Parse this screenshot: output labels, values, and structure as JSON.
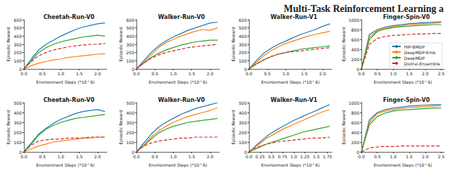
{
  "header": {
    "title": "Multi-Task Reinforcement Learning a"
  },
  "chart_data": [
    {
      "type": "line",
      "title": "Cheetah-Run-V0",
      "xlabel": "Environment Steps (*10^6)",
      "ylabel": "Episodic Reward",
      "x": [
        0,
        0.2,
        0.4,
        0.6,
        0.8,
        1.0,
        1.2,
        1.4,
        1.6,
        1.8,
        2.0,
        2.2
      ],
      "xlim": [
        0,
        2.25
      ],
      "xticks": [
        {
          "value": 0,
          "label": "0.0"
        },
        0.5,
        {
          "value": 1,
          "label": "1.0"
        },
        1.5,
        {
          "value": 2,
          "label": "2.0"
        }
      ],
      "ylim": [
        0,
        600
      ],
      "yticks": [
        0,
        100,
        200,
        300,
        400,
        500,
        600
      ],
      "grid": false,
      "series": [
        {
          "name": "HIP-BMDP",
          "color": "#1f77b4",
          "values": [
            0,
            120,
            230,
            300,
            350,
            400,
            440,
            480,
            510,
            530,
            550,
            560
          ]
        },
        {
          "name": "DeepMDP-Emb",
          "color": "#ff7f0e",
          "values": [
            0,
            40,
            70,
            90,
            110,
            120,
            140,
            150,
            160,
            170,
            180,
            185
          ]
        },
        {
          "name": "DeepMDP",
          "color": "#2ca02c",
          "values": [
            0,
            100,
            200,
            260,
            300,
            330,
            350,
            370,
            390,
            400,
            410,
            400
          ]
        },
        {
          "name": "Distral-Ensemble",
          "color": "#d62728",
          "line_style": "dashed",
          "values": [
            0,
            90,
            160,
            200,
            230,
            250,
            270,
            280,
            290,
            300,
            300,
            310
          ]
        }
      ]
    },
    {
      "type": "line",
      "title": "Walker-Run-V0",
      "xlabel": "Environment Steps (*10^6)",
      "ylabel": "Episodic Reward",
      "x": [
        0,
        0.2,
        0.4,
        0.6,
        0.8,
        1.0,
        1.2,
        1.4,
        1.6,
        1.8,
        2.0,
        2.2
      ],
      "xlim": [
        0,
        2.25
      ],
      "xticks": [
        {
          "value": 0,
          "label": "0.0"
        },
        0.5,
        {
          "value": 1,
          "label": "1.0"
        },
        1.5,
        {
          "value": 2,
          "label": "2.0"
        }
      ],
      "ylim": [
        0,
        600
      ],
      "yticks": [
        0,
        100,
        200,
        300,
        400,
        500,
        600
      ],
      "grid": false,
      "series": [
        {
          "name": "HIP-BMDP",
          "color": "#1f77b4",
          "values": [
            0,
            100,
            200,
            280,
            340,
            390,
            430,
            470,
            500,
            530,
            560,
            570
          ]
        },
        {
          "name": "DeepMDP-Emb",
          "color": "#ff7f0e",
          "values": [
            0,
            80,
            170,
            260,
            320,
            360,
            400,
            430,
            460,
            480,
            470,
            500
          ]
        },
        {
          "name": "DeepMDP",
          "color": "#2ca02c",
          "values": [
            0,
            70,
            140,
            190,
            230,
            260,
            290,
            310,
            330,
            340,
            350,
            350
          ]
        },
        {
          "name": "Distral-Ensemble",
          "color": "#d62728",
          "line_style": "dashed",
          "values": [
            0,
            70,
            130,
            170,
            200,
            220,
            240,
            260,
            270,
            280,
            290,
            300
          ]
        }
      ]
    },
    {
      "type": "line",
      "title": "Walker-Run-V1",
      "xlabel": "Environment Steps (*10^6)",
      "ylabel": "Episodic Reward",
      "x": [
        0,
        0.2,
        0.4,
        0.6,
        0.8,
        1.0,
        1.2,
        1.4,
        1.6,
        1.8,
        2.0,
        2.2
      ],
      "xlim": [
        0,
        2.25
      ],
      "xticks": [
        {
          "value": 0,
          "label": "0.0"
        },
        0.5,
        {
          "value": 1,
          "label": "1.0"
        },
        1.5,
        {
          "value": 2,
          "label": "2.0"
        }
      ],
      "ylim": [
        0,
        600
      ],
      "yticks": [
        0,
        100,
        200,
        300,
        400,
        500,
        600
      ],
      "grid": false,
      "series": [
        {
          "name": "HIP-BMDP",
          "color": "#1f77b4",
          "values": [
            0,
            100,
            190,
            250,
            300,
            340,
            380,
            420,
            450,
            480,
            520,
            550
          ]
        },
        {
          "name": "DeepMDP-Emb",
          "color": "#ff7f0e",
          "values": [
            0,
            80,
            160,
            220,
            270,
            310,
            340,
            370,
            400,
            420,
            440,
            460
          ]
        },
        {
          "name": "DeepMDP",
          "color": "#2ca02c",
          "values": [
            0,
            60,
            110,
            150,
            180,
            200,
            220,
            240,
            250,
            260,
            270,
            280
          ]
        },
        {
          "name": "Distral-Ensemble",
          "color": "#d62728",
          "line_style": "dashed",
          "values": [
            0,
            60,
            110,
            150,
            180,
            200,
            210,
            220,
            230,
            240,
            250,
            260
          ]
        }
      ]
    },
    {
      "type": "line",
      "title": "Finger-Spin-V0",
      "xlabel": "Environment Steps (*10^6)",
      "ylabel": "Episodic Reward",
      "x": [
        0,
        0.25,
        0.5,
        0.75,
        1.0,
        1.25,
        1.5,
        1.75,
        2.0,
        2.25,
        2.5
      ],
      "xlim": [
        0,
        2.6
      ],
      "xticks": [
        {
          "value": 0,
          "label": "0.0"
        },
        0.5,
        {
          "value": 1,
          "label": "1.0"
        },
        1.5,
        {
          "value": 2,
          "label": "2.0"
        },
        2.5
      ],
      "ylim": [
        0,
        1000
      ],
      "yticks": [
        0,
        200,
        400,
        600,
        800,
        1000
      ],
      "grid": false,
      "legend": "lower right",
      "series": [
        {
          "name": "HIP-BMDP",
          "color": "#1f77b4",
          "values": [
            0,
            700,
            800,
            850,
            880,
            900,
            920,
            930,
            940,
            950,
            960
          ]
        },
        {
          "name": "DeepMDP-Emb",
          "color": "#ff7f0e",
          "values": [
            0,
            650,
            780,
            830,
            860,
            880,
            900,
            910,
            920,
            930,
            940
          ]
        },
        {
          "name": "DeepMDP",
          "color": "#2ca02c",
          "values": [
            0,
            600,
            760,
            810,
            840,
            860,
            870,
            880,
            890,
            900,
            900
          ]
        },
        {
          "name": "Distral-Ensemble",
          "color": "#d62728",
          "line_style": "dashed",
          "values": [
            0,
            500,
            620,
            660,
            680,
            690,
            700,
            710,
            710,
            720,
            720
          ]
        }
      ]
    },
    {
      "type": "line",
      "title": "Cheetah-Run-V0",
      "xlabel": "Environment Steps (*10^6)",
      "ylabel": "Episodic Reward",
      "x": [
        0,
        0.2,
        0.4,
        0.6,
        0.8,
        1.0,
        1.2,
        1.4,
        1.6,
        1.8,
        2.0,
        2.2
      ],
      "xlim": [
        0,
        2.25
      ],
      "xticks": [
        {
          "value": 0,
          "label": "0.0"
        },
        0.5,
        {
          "value": 1,
          "label": "1.0"
        },
        1.5,
        {
          "value": 2,
          "label": "2.0"
        }
      ],
      "ylim": [
        0,
        500
      ],
      "yticks": [
        0,
        100,
        200,
        300,
        400,
        500
      ],
      "grid": false,
      "series": [
        {
          "name": "HIP-BMDP",
          "color": "#1f77b4",
          "values": [
            0,
            90,
            180,
            240,
            290,
            330,
            360,
            390,
            410,
            420,
            430,
            410
          ]
        },
        {
          "name": "DeepMDP-Emb",
          "color": "#ff7f0e",
          "values": [
            0,
            30,
            60,
            80,
            100,
            110,
            120,
            130,
            140,
            140,
            150,
            150
          ]
        },
        {
          "name": "DeepMDP",
          "color": "#2ca02c",
          "values": [
            0,
            80,
            170,
            230,
            270,
            300,
            320,
            340,
            350,
            360,
            370,
            380
          ]
        },
        {
          "name": "Distral-Ensemble",
          "color": "#d62728",
          "line_style": "dashed",
          "values": [
            0,
            70,
            110,
            120,
            130,
            130,
            140,
            140,
            140,
            150,
            150,
            150
          ]
        }
      ]
    },
    {
      "type": "line",
      "title": "Walker-Run-V0",
      "xlabel": "Environment Steps (*10^6)",
      "ylabel": "Episodic Reward",
      "x": [
        0,
        0.2,
        0.4,
        0.6,
        0.8,
        1.0,
        1.2,
        1.4,
        1.6,
        1.8,
        2.0,
        2.2
      ],
      "xlim": [
        0,
        2.25
      ],
      "xticks": [
        {
          "value": 0,
          "label": "0.0"
        },
        0.5,
        {
          "value": 1,
          "label": "1.0"
        },
        1.5,
        {
          "value": 2,
          "label": "2.0"
        }
      ],
      "ylim": [
        0,
        500
      ],
      "yticks": [
        0,
        100,
        200,
        300,
        400,
        500
      ],
      "grid": false,
      "series": [
        {
          "name": "HIP-BMDP",
          "color": "#1f77b4",
          "values": [
            0,
            90,
            180,
            250,
            300,
            340,
            380,
            410,
            440,
            460,
            480,
            500
          ]
        },
        {
          "name": "DeepMDP-Emb",
          "color": "#ff7f0e",
          "values": [
            0,
            70,
            150,
            210,
            260,
            300,
            330,
            360,
            380,
            400,
            420,
            450
          ]
        },
        {
          "name": "DeepMDP",
          "color": "#2ca02c",
          "values": [
            0,
            60,
            130,
            190,
            230,
            260,
            280,
            300,
            310,
            320,
            330,
            340
          ]
        },
        {
          "name": "Distral-Ensemble",
          "color": "#d62728",
          "line_style": "dashed",
          "values": [
            0,
            60,
            90,
            110,
            120,
            130,
            140,
            140,
            150,
            150,
            150,
            150
          ]
        }
      ]
    },
    {
      "type": "line",
      "title": "Walker-Run-V1",
      "xlabel": "Environment Steps (*10^6)",
      "ylabel": "Episodic Reward",
      "x": [
        0,
        0.2,
        0.4,
        0.6,
        0.8,
        1.0,
        1.2,
        1.4,
        1.6,
        1.8
      ],
      "xlim": [
        0,
        1.85
      ],
      "xticks": [
        {
          "value": 0,
          "label": "0.0"
        },
        0.25,
        0.5,
        0.75,
        {
          "value": 1,
          "label": "1.0"
        },
        1.25,
        1.5,
        1.75
      ],
      "ylim": [
        0,
        500
      ],
      "yticks": [
        0,
        100,
        200,
        300,
        400,
        500
      ],
      "grid": false,
      "series": [
        {
          "name": "HIP-BMDP",
          "color": "#1f77b4",
          "values": [
            0,
            80,
            160,
            220,
            270,
            320,
            360,
            400,
            440,
            480
          ]
        },
        {
          "name": "DeepMDP-Emb",
          "color": "#ff7f0e",
          "values": [
            0,
            70,
            140,
            190,
            240,
            280,
            320,
            360,
            400,
            430
          ]
        },
        {
          "name": "DeepMDP",
          "color": "#2ca02c",
          "values": [
            0,
            40,
            80,
            110,
            140,
            170,
            200,
            220,
            240,
            260
          ]
        },
        {
          "name": "Distral-Ensemble",
          "color": "#d62728",
          "line_style": "dashed",
          "values": [
            0,
            50,
            80,
            100,
            110,
            120,
            130,
            140,
            140,
            150
          ]
        }
      ]
    },
    {
      "type": "line",
      "title": "Finger-Spin-V0",
      "xlabel": "Environment Steps (*10^6)",
      "ylabel": "Episodic Reward",
      "x": [
        0,
        0.25,
        0.5,
        0.75,
        1.0,
        1.25,
        1.5,
        1.75,
        2.0,
        2.25,
        2.5
      ],
      "xlim": [
        0,
        2.6
      ],
      "xticks": [
        {
          "value": 0,
          "label": "0.0"
        },
        0.5,
        {
          "value": 1,
          "label": "1.0"
        },
        1.5,
        {
          "value": 2,
          "label": "2.0"
        },
        2.5
      ],
      "ylim": [
        0,
        1000
      ],
      "yticks": [
        0,
        200,
        400,
        600,
        800,
        1000
      ],
      "grid": false,
      "series": [
        {
          "name": "HIP-BMDP",
          "color": "#1f77b4",
          "values": [
            0,
            650,
            800,
            860,
            890,
            910,
            930,
            940,
            950,
            960,
            960
          ]
        },
        {
          "name": "DeepMDP-Emb",
          "color": "#ff7f0e",
          "values": [
            0,
            600,
            780,
            830,
            860,
            880,
            900,
            910,
            920,
            930,
            940
          ]
        },
        {
          "name": "DeepMDP",
          "color": "#2ca02c",
          "values": [
            0,
            550,
            720,
            790,
            830,
            850,
            860,
            870,
            880,
            890,
            890
          ]
        },
        {
          "name": "Distral-Ensemble",
          "color": "#d62728",
          "line_style": "dashed",
          "values": [
            0,
            80,
            100,
            110,
            110,
            120,
            120,
            120,
            120,
            120,
            120
          ]
        }
      ]
    }
  ]
}
